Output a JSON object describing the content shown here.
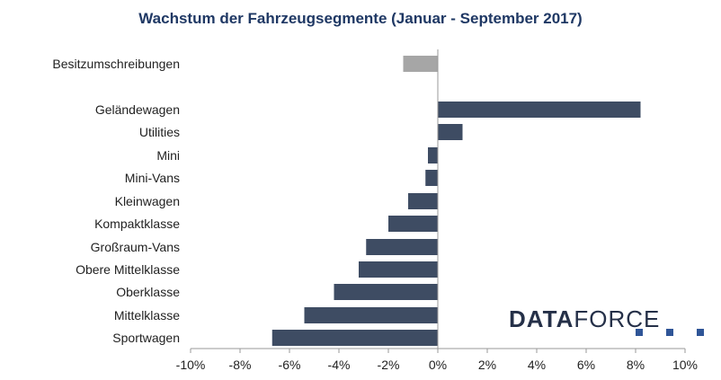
{
  "chart_data": {
    "type": "bar",
    "orientation": "horizontal",
    "title": "Wachstum der Fahrzeugsegmente (Januar - September 2017)",
    "categories": [
      "Besitzumschreibungen",
      "Geländewagen",
      "Utilities",
      "Mini",
      "Mini-Vans",
      "Kleinwagen",
      "Kompaktklasse",
      "Großraum-Vans",
      "Obere Mittelklasse",
      "Oberklasse",
      "Mittelklasse",
      "Sportwagen"
    ],
    "values": [
      -1.4,
      8.2,
      1.0,
      -0.4,
      -0.5,
      -1.2,
      -2.0,
      -2.9,
      -3.2,
      -4.2,
      -5.4,
      -6.7
    ],
    "bar_colors": [
      "#a6a6a6",
      "#3e4c63",
      "#3e4c63",
      "#3e4c63",
      "#3e4c63",
      "#3e4c63",
      "#3e4c63",
      "#3e4c63",
      "#3e4c63",
      "#3e4c63",
      "#3e4c63",
      "#3e4c63"
    ],
    "xlim": [
      -10,
      10
    ],
    "xticks": [
      -10,
      -8,
      -6,
      -4,
      -2,
      0,
      2,
      4,
      6,
      8,
      10
    ],
    "xtick_labels": [
      "-10%",
      "-8%",
      "-6%",
      "-4%",
      "-2%",
      "0%",
      "2%",
      "4%",
      "6%",
      "8%",
      "10%"
    ],
    "xlabel": "",
    "ylabel": "",
    "grid": false,
    "legend": "none"
  },
  "logo": {
    "text_bold": "DATA",
    "text_light": "FORCE",
    "color": "#253048",
    "accent_color": "#2f5597"
  }
}
